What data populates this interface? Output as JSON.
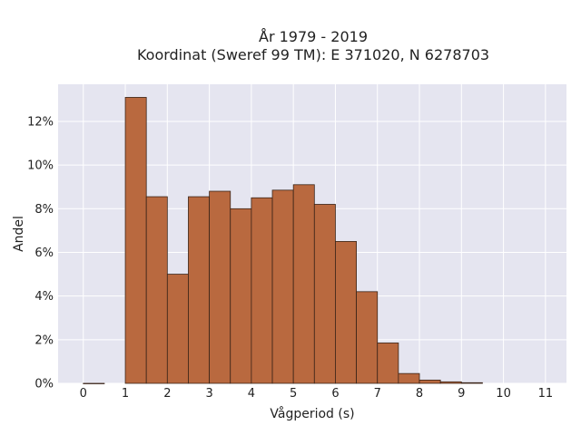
{
  "chart_data": {
    "type": "bar",
    "title_line1": "År 1979 - 2019",
    "title_line2": "Koordinat (Sweref 99 TM): E 371020, N 6278703",
    "xlabel": "Vågperiod (s)",
    "ylabel": "Andel",
    "bin_width": 0.5,
    "bins": [
      {
        "start": 0.0,
        "value": 0.0005
      },
      {
        "start": 1.0,
        "value": 13.1
      },
      {
        "start": 1.5,
        "value": 8.55
      },
      {
        "start": 2.0,
        "value": 5.0
      },
      {
        "start": 2.5,
        "value": 8.55
      },
      {
        "start": 3.0,
        "value": 8.8
      },
      {
        "start": 3.5,
        "value": 8.0
      },
      {
        "start": 4.0,
        "value": 8.5
      },
      {
        "start": 4.5,
        "value": 8.85
      },
      {
        "start": 5.0,
        "value": 9.1
      },
      {
        "start": 5.5,
        "value": 8.2
      },
      {
        "start": 6.0,
        "value": 6.5
      },
      {
        "start": 6.5,
        "value": 4.2
      },
      {
        "start": 7.0,
        "value": 1.85
      },
      {
        "start": 7.5,
        "value": 0.45
      },
      {
        "start": 8.0,
        "value": 0.15
      },
      {
        "start": 8.5,
        "value": 0.07
      },
      {
        "start": 9.0,
        "value": 0.03
      }
    ],
    "xlim": [
      -0.6,
      11.5
    ],
    "ylim": [
      0,
      13.7
    ],
    "xticks": [
      "0",
      "1",
      "2",
      "3",
      "4",
      "5",
      "6",
      "7",
      "8",
      "9",
      "10",
      "11"
    ],
    "xtick_values": [
      0,
      1,
      2,
      3,
      4,
      5,
      6,
      7,
      8,
      9,
      10,
      11
    ],
    "yticks": [
      "0%",
      "2%",
      "4%",
      "6%",
      "8%",
      "10%",
      "12%"
    ],
    "ytick_values": [
      0,
      2,
      4,
      6,
      8,
      10,
      12
    ],
    "grid": true,
    "colors": {
      "bar_fill": "#b9693f",
      "bar_edge": "#3a2418",
      "plot_bg": "#e5e5f0",
      "grid": "#ffffff"
    }
  }
}
